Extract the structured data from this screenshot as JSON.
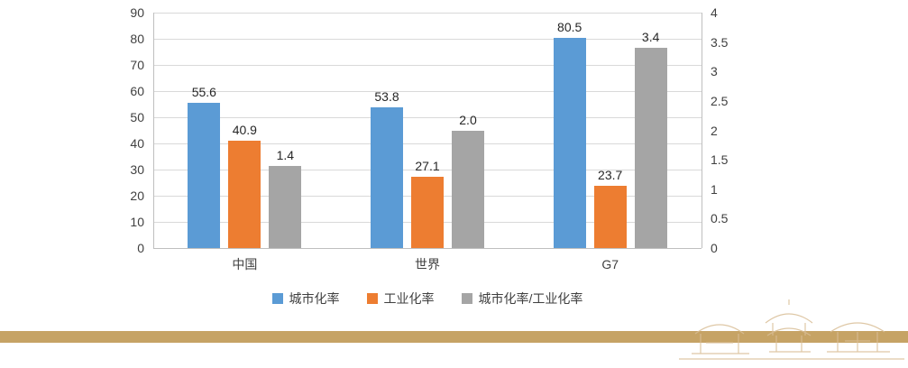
{
  "chart_data": {
    "type": "bar",
    "title": "",
    "categories": [
      "中国",
      "世界",
      "G7"
    ],
    "series": [
      {
        "name": "城市化率",
        "axis": "left",
        "color": "#5B9BD5",
        "values": [
          55.6,
          53.8,
          80.5
        ],
        "labels": [
          "55.6",
          "53.8",
          "80.5"
        ]
      },
      {
        "name": "工业化率",
        "axis": "left",
        "color": "#ED7D31",
        "values": [
          40.9,
          27.1,
          23.7
        ],
        "labels": [
          "40.9",
          "27.1",
          "23.7"
        ]
      },
      {
        "name": "城市化率/工业化率",
        "axis": "right",
        "color": "#A5A5A5",
        "values": [
          1.4,
          2.0,
          3.4
        ],
        "labels": [
          "1.4",
          "2.0",
          "3.4"
        ]
      }
    ],
    "left_axis": {
      "min": 0,
      "max": 90,
      "step": 10,
      "ticks": [
        "0",
        "10",
        "20",
        "30",
        "40",
        "50",
        "60",
        "70",
        "80",
        "90"
      ]
    },
    "right_axis": {
      "min": 0,
      "max": 4,
      "step": 0.5,
      "ticks": [
        "0",
        "0.5",
        "1",
        "1.5",
        "2",
        "2.5",
        "3",
        "3.5",
        "4"
      ]
    },
    "grid": true,
    "legend_position": "bottom",
    "data_labels": true
  },
  "decor": {
    "band_color": "#C6A365",
    "sketch_color": "#D9BE96"
  }
}
